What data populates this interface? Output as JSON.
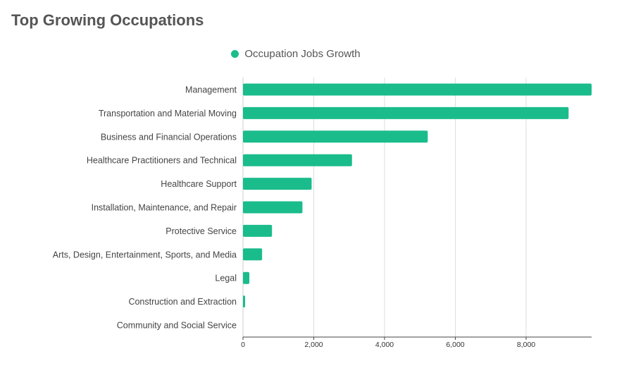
{
  "title": "Top Growing Occupations",
  "colors": {
    "bar": "#1abc8b",
    "grid": "#dddddd",
    "axis": "#444444"
  },
  "chart_data": {
    "type": "bar",
    "orientation": "horizontal",
    "legend": {
      "position": "top-center"
    },
    "grid": true,
    "categories": [
      "Management",
      "Transportation and Material Moving",
      "Business and Financial Operations",
      "Healthcare Practitioners and Technical",
      "Healthcare Support",
      "Installation, Maintenance, and Repair",
      "Protective Service",
      "Arts, Design, Entertainment, Sports, and Media",
      "Legal",
      "Construction and Extraction",
      "Community and Social Service"
    ],
    "series": [
      {
        "name": "Occupation Jobs Growth",
        "values": [
          9850,
          9200,
          5220,
          3080,
          1940,
          1680,
          820,
          540,
          180,
          50,
          0
        ]
      }
    ],
    "xlim": [
      0,
      9850
    ],
    "xticks": [
      0,
      2000,
      4000,
      6000,
      8000
    ],
    "xtick_labels": [
      "0",
      "2,000",
      "4,000",
      "6,000",
      "8,000"
    ]
  }
}
